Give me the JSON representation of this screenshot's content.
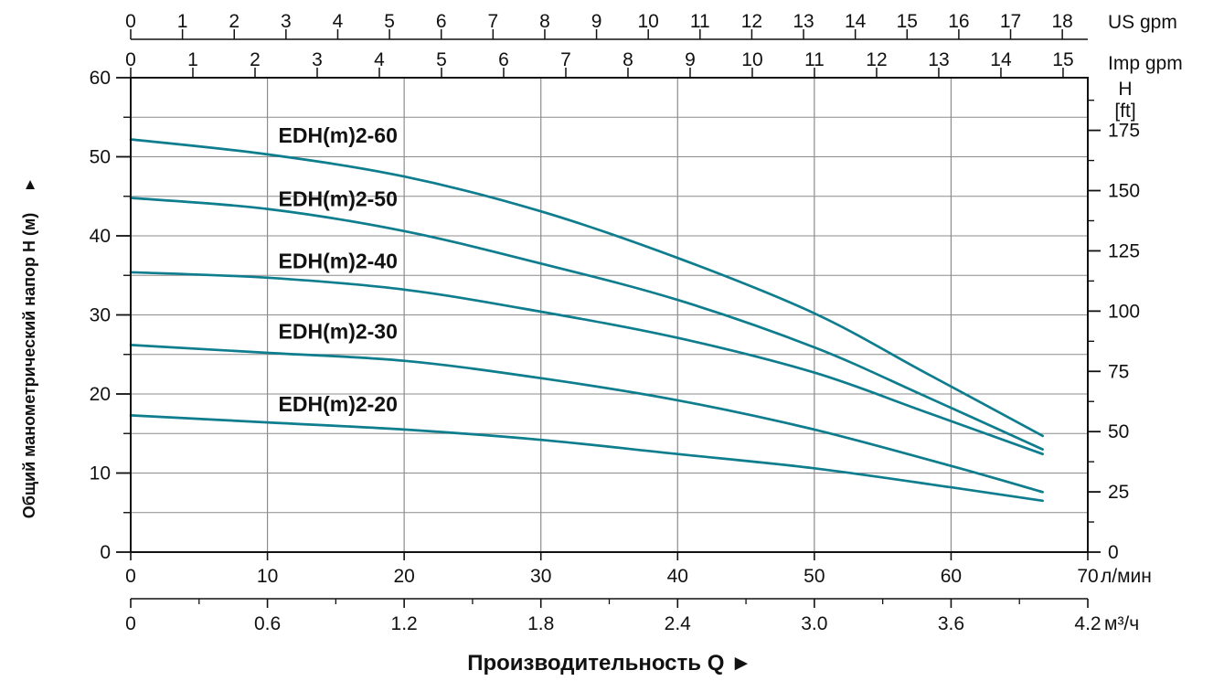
{
  "chart_data": {
    "type": "line",
    "title": "",
    "xlabel": "Производительность Q",
    "xlabel_arrow": "►",
    "x_primary": {
      "unit": "л/мин",
      "min": 0,
      "max": 70,
      "major_ticks": [
        0,
        10,
        20,
        30,
        40,
        50,
        60,
        70
      ]
    },
    "x_secondary_m3h": {
      "unit": "м³/ч",
      "tick_labels": [
        "0",
        "0.6",
        "1.2",
        "1.8",
        "2.4",
        "3.0",
        "3.6",
        "4.2"
      ],
      "tick_values_lmin": [
        0,
        10,
        20,
        30,
        40,
        50,
        60,
        70
      ],
      "minor_tick_values_lmin": [
        5,
        15,
        25,
        35,
        45,
        55,
        65
      ]
    },
    "x_top_us_gpm": {
      "unit": "US gpm",
      "ticks": [
        0,
        1,
        2,
        3,
        4,
        5,
        6,
        7,
        8,
        9,
        10,
        11,
        12,
        13,
        14,
        15,
        16,
        17,
        18
      ],
      "lmin_per_unit": 3.78541
    },
    "x_top_imp_gpm": {
      "unit": "Imp gpm",
      "ticks": [
        0,
        1,
        2,
        3,
        4,
        5,
        6,
        7,
        8,
        9,
        10,
        11,
        12,
        13,
        14,
        15
      ],
      "lmin_per_unit": 4.54609
    },
    "y_primary": {
      "label": "Общий манометрический напор H (м)",
      "arrow": "▲",
      "min": 0,
      "max": 60,
      "major_ticks": [
        0,
        10,
        20,
        30,
        40,
        50,
        60
      ],
      "minor_ticks": [
        5,
        15,
        25,
        35,
        45,
        55
      ]
    },
    "y_secondary_ft": {
      "label_line1": "H",
      "label_line2": "[ft]",
      "ticks": [
        0,
        25,
        50,
        75,
        100,
        125,
        150,
        175
      ],
      "minor_ticks": [
        12.5,
        37.5,
        62.5,
        87.5,
        112.5,
        137.5,
        162.5,
        187.5
      ],
      "m_per_ft": 0.3048
    },
    "grid": {
      "vertical_lmin": [
        10,
        20,
        30,
        40,
        50,
        60
      ],
      "horizontal_m_step": 5
    },
    "series": [
      {
        "name": "EDH(m)2-60",
        "points": [
          [
            0,
            52.2
          ],
          [
            10,
            50.3
          ],
          [
            20,
            47.5
          ],
          [
            30,
            43.1
          ],
          [
            40,
            37.2
          ],
          [
            50,
            30.2
          ],
          [
            58,
            22.8
          ],
          [
            66.7,
            14.7
          ]
        ],
        "label_pos": [
          10.8,
          52.7
        ]
      },
      {
        "name": "EDH(m)2-50",
        "points": [
          [
            0,
            44.8
          ],
          [
            10,
            43.4
          ],
          [
            20,
            40.6
          ],
          [
            30,
            36.5
          ],
          [
            40,
            31.9
          ],
          [
            50,
            25.9
          ],
          [
            58,
            19.8
          ],
          [
            66.7,
            13.0
          ]
        ],
        "label_pos": [
          10.8,
          44.7
        ]
      },
      {
        "name": "EDH(m)2-40",
        "points": [
          [
            0,
            35.4
          ],
          [
            10,
            34.7
          ],
          [
            20,
            33.2
          ],
          [
            30,
            30.4
          ],
          [
            40,
            27.1
          ],
          [
            50,
            22.7
          ],
          [
            58,
            17.8
          ],
          [
            66.7,
            12.4
          ]
        ],
        "label_pos": [
          10.8,
          36.8
        ]
      },
      {
        "name": "EDH(m)2-30",
        "points": [
          [
            0,
            26.2
          ],
          [
            10,
            25.2
          ],
          [
            20,
            24.2
          ],
          [
            30,
            22.0
          ],
          [
            40,
            19.2
          ],
          [
            50,
            15.5
          ],
          [
            60,
            10.9
          ],
          [
            66.7,
            7.6
          ]
        ],
        "label_pos": [
          10.8,
          27.9
        ]
      },
      {
        "name": "EDH(m)2-20",
        "points": [
          [
            0,
            17.3
          ],
          [
            10,
            16.4
          ],
          [
            20,
            15.5
          ],
          [
            30,
            14.2
          ],
          [
            40,
            12.4
          ],
          [
            50,
            10.6
          ],
          [
            60,
            8.2
          ],
          [
            66.7,
            6.5
          ]
        ],
        "label_pos": [
          10.8,
          18.7
        ]
      }
    ],
    "colors": {
      "curve": "#0e7d8e",
      "grid": "#8c8c8c",
      "axis": "#111111",
      "text": "#111111"
    }
  }
}
